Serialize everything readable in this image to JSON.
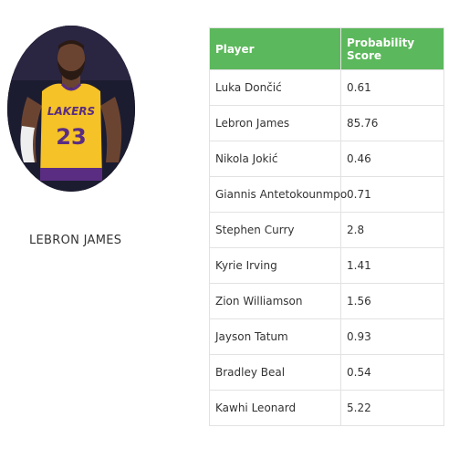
{
  "profile": {
    "name": "LEBRON JAMES",
    "photo_alt": "player-photo"
  },
  "colors": {
    "header_bg": "#5cb85c",
    "header_text": "#ffffff",
    "jersey": "#f5c227",
    "jersey_trim": "#5a2d82"
  },
  "table": {
    "headers": [
      "Player",
      "Probability Score"
    ],
    "rows": [
      {
        "player": "Luka Dončić",
        "score": "0.61"
      },
      {
        "player": "Lebron James",
        "score": "85.76"
      },
      {
        "player": "Nikola Jokić",
        "score": "0.46"
      },
      {
        "player": "Giannis Antetokounmpo",
        "score": "0.71"
      },
      {
        "player": "Stephen Curry",
        "score": "2.8"
      },
      {
        "player": "Kyrie Irving",
        "score": "1.41"
      },
      {
        "player": "Zion Williamson",
        "score": "1.56"
      },
      {
        "player": "Jayson Tatum",
        "score": "0.93"
      },
      {
        "player": "Bradley Beal",
        "score": "0.54"
      },
      {
        "player": "Kawhi Leonard",
        "score": "5.22"
      }
    ]
  }
}
